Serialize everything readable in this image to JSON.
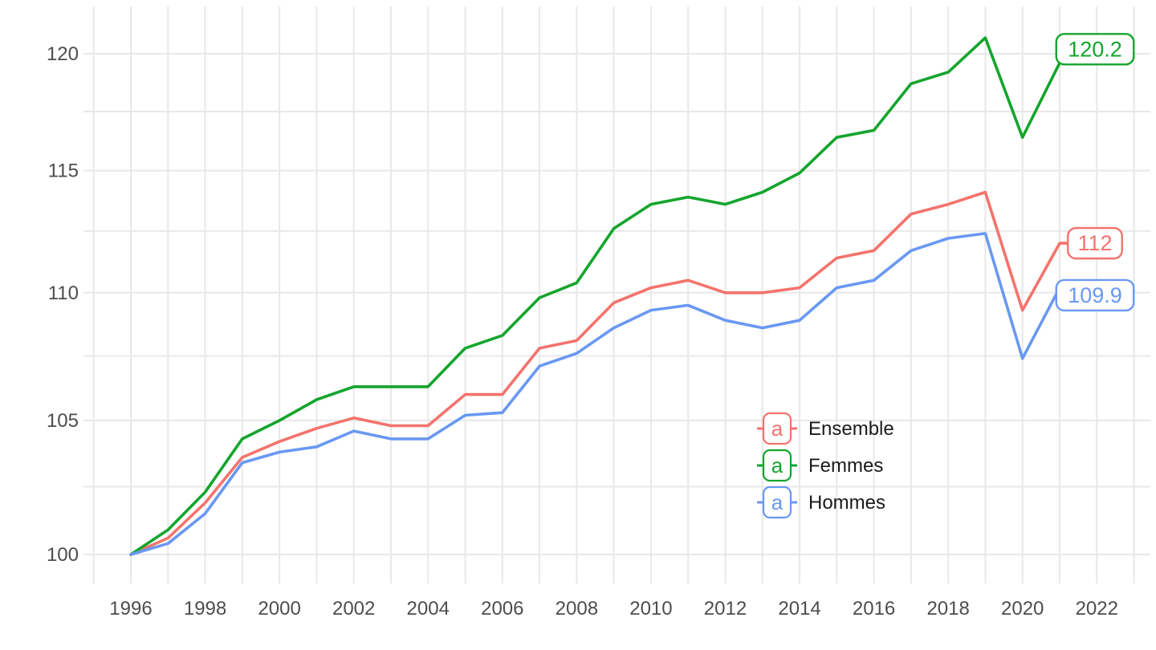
{
  "chart_data": {
    "type": "line",
    "title": "",
    "xlabel": "",
    "ylabel": "",
    "y_scale": "log-index",
    "x": [
      1996,
      1997,
      1998,
      1999,
      2000,
      2001,
      2002,
      2003,
      2004,
      2005,
      2006,
      2007,
      2008,
      2009,
      2010,
      2011,
      2012,
      2013,
      2014,
      2015,
      2016,
      2017,
      2018,
      2019,
      2020,
      2021,
      2022
    ],
    "x_tick_labels": [
      "1996",
      "1998",
      "2000",
      "2002",
      "2004",
      "2006",
      "2008",
      "2010",
      "2012",
      "2014",
      "2016",
      "2018",
      "2020",
      "2022"
    ],
    "y_tick_labels": [
      "100",
      "105",
      "110",
      "115",
      "120"
    ],
    "y_tick_values": [
      100,
      105,
      110,
      115,
      120
    ],
    "y_gridline_values": [
      100,
      102.5,
      105,
      107.5,
      110,
      112.5,
      115,
      117.5,
      120
    ],
    "xlim": [
      1994.8,
      2023.5
    ],
    "ylim": [
      98.9,
      121.3
    ],
    "grid": "on",
    "series": [
      {
        "name": "Ensemble",
        "color": "#F4736D",
        "end_label": "112",
        "values": [
          100,
          100.6,
          101.9,
          103.6,
          104.2,
          104.7,
          105.1,
          104.8,
          104.8,
          106,
          106,
          107.8,
          108.1,
          109.6,
          110.2,
          110.5,
          110,
          110,
          110.2,
          111.4,
          111.7,
          113.2,
          113.6,
          114.1,
          109.3,
          112,
          112
        ]
      },
      {
        "name": "Femmes",
        "color": "#14A52D",
        "end_label": "120.2",
        "values": [
          100,
          100.9,
          102.3,
          104.3,
          105,
          105.8,
          106.3,
          106.3,
          106.3,
          107.8,
          108.3,
          109.8,
          110.4,
          112.6,
          113.6,
          113.9,
          113.6,
          114.1,
          114.9,
          116.4,
          116.7,
          118.7,
          119.2,
          120.7,
          116.4,
          119.6,
          120.2
        ]
      },
      {
        "name": "Hommes",
        "color": "#6998F3",
        "end_label": "109.9",
        "values": [
          100,
          100.4,
          101.5,
          103.4,
          103.8,
          104,
          104.6,
          104.3,
          104.3,
          105.2,
          105.3,
          107.1,
          107.6,
          108.6,
          109.3,
          109.5,
          108.9,
          108.6,
          108.9,
          110.2,
          110.5,
          111.7,
          112.2,
          112.4,
          107.4,
          110.2,
          109.9
        ]
      }
    ],
    "legend": {
      "position": "inside-center-right",
      "key_glyph": "a",
      "entries": [
        {
          "label": "Ensemble",
          "color": "#F4736D"
        },
        {
          "label": "Femmes",
          "color": "#14A52D"
        },
        {
          "label": "Hommes",
          "color": "#6998F3"
        }
      ]
    }
  },
  "colors": {
    "background": "#FFFFFF",
    "gridline": "#E8E8E8",
    "axis_text": "#4D4D4D",
    "legend_text": "#1A1A1A",
    "label_box_fill": "#FFFFFF"
  }
}
